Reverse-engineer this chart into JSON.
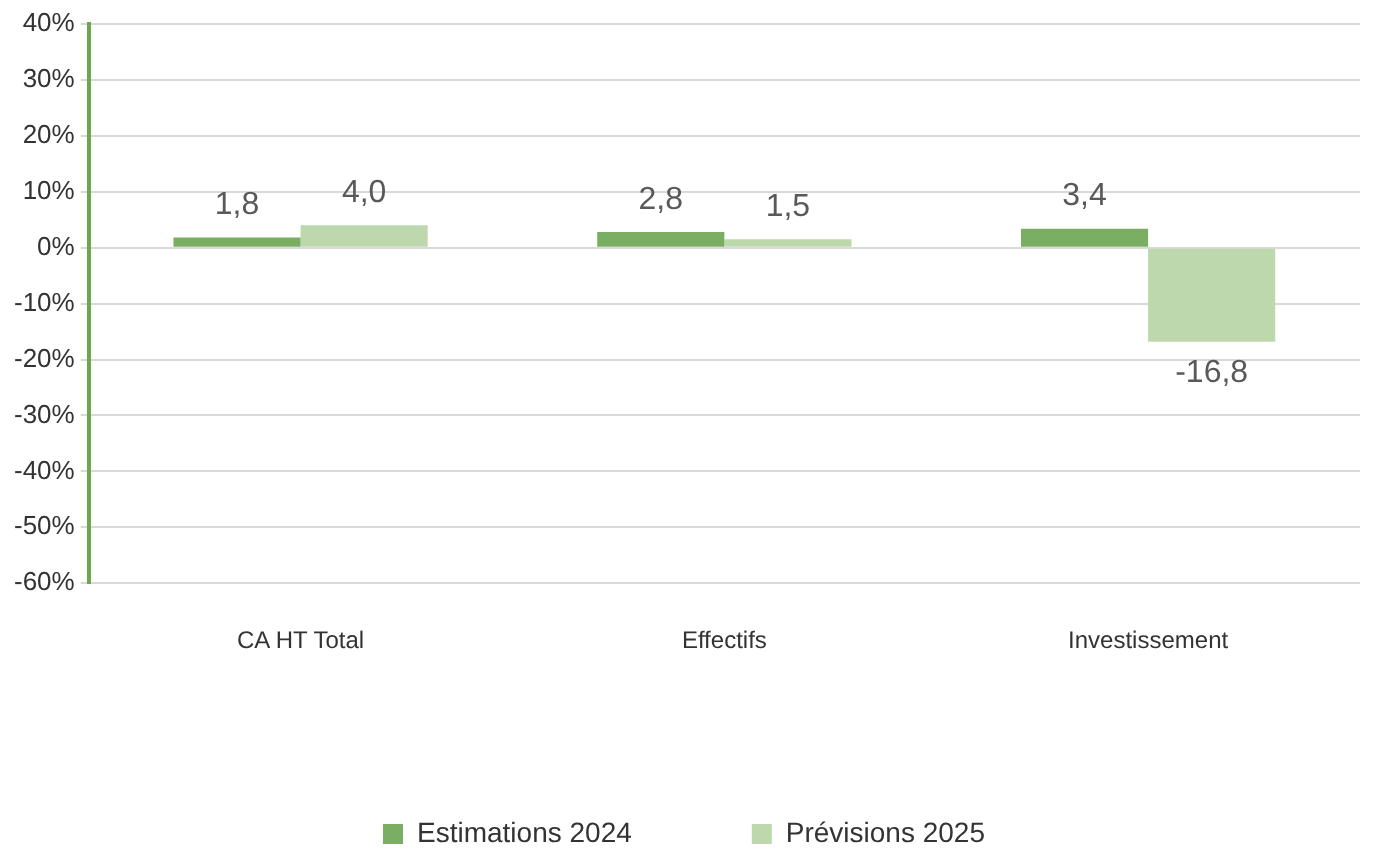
{
  "chart_data": {
    "type": "bar",
    "categories": [
      "CA HT Total",
      "Effectifs",
      "Investissement"
    ],
    "series": [
      {
        "name": "Estimations 2024",
        "color": "#7aae62",
        "values": [
          1.8,
          2.8,
          3.4
        ],
        "value_labels": [
          "1,8",
          "2,8",
          "3,4"
        ]
      },
      {
        "name": "Prévisions 2025",
        "color": "#bcd8ac",
        "values": [
          4.0,
          1.5,
          -16.8
        ],
        "value_labels": [
          "4,0",
          "1,5",
          "-16,8"
        ]
      }
    ],
    "ylim": [
      -60,
      40
    ],
    "yticks": [
      {
        "value": -60,
        "label": "-60%"
      },
      {
        "value": -50,
        "label": "-50%"
      },
      {
        "value": -40,
        "label": "-40%"
      },
      {
        "value": -30,
        "label": "-30%"
      },
      {
        "value": -20,
        "label": "-20%"
      },
      {
        "value": -10,
        "label": "-10%"
      },
      {
        "value": 0,
        "label": "0%"
      },
      {
        "value": 10,
        "label": "10%"
      },
      {
        "value": 20,
        "label": "20%"
      },
      {
        "value": 30,
        "label": "30%"
      },
      {
        "value": 40,
        "label": "40%"
      }
    ],
    "grid": "y",
    "legend": "bottom"
  }
}
